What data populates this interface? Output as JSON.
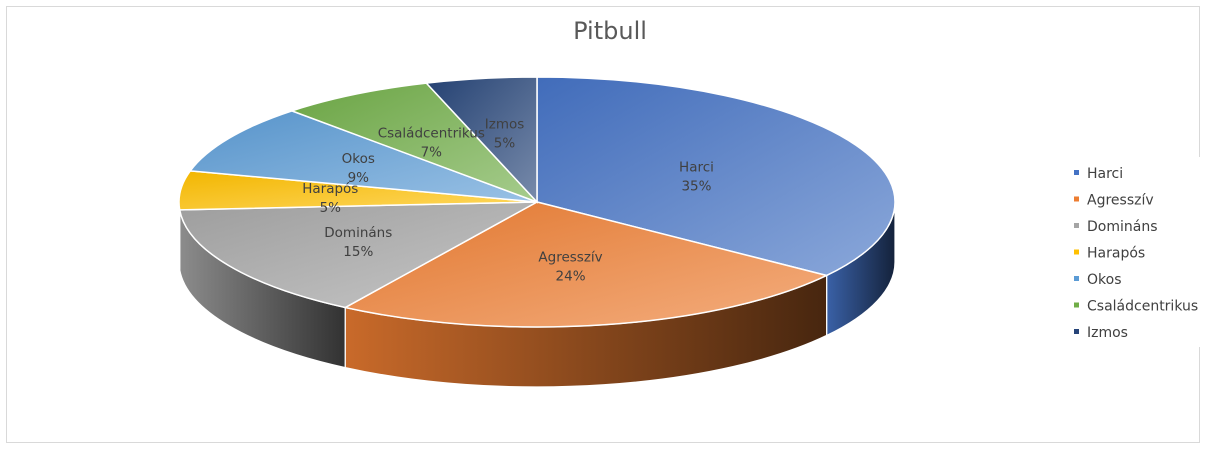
{
  "chart_data": {
    "type": "pie",
    "title": "Pitbull",
    "style": "3d-exploded-none",
    "legend_position": "right",
    "slices": [
      {
        "label": "Harci",
        "value": 35,
        "percent_label": "35%",
        "color": "#4472c4"
      },
      {
        "label": "Agresszív",
        "value": 24,
        "percent_label": "24%",
        "color": "#ed7d31"
      },
      {
        "label": "Domináns",
        "value": 15,
        "percent_label": "15%",
        "color": "#a5a5a5"
      },
      {
        "label": "Harapós",
        "value": 5,
        "percent_label": "5%",
        "color": "#ffc000"
      },
      {
        "label": "Okos",
        "value": 9,
        "percent_label": "9%",
        "color": "#5b9bd5"
      },
      {
        "label": "Családcentrikus",
        "value": 7,
        "percent_label": "7%",
        "color": "#70ad47"
      },
      {
        "label": "Izmos",
        "value": 5,
        "percent_label": "5%",
        "color": "#264478"
      }
    ]
  }
}
